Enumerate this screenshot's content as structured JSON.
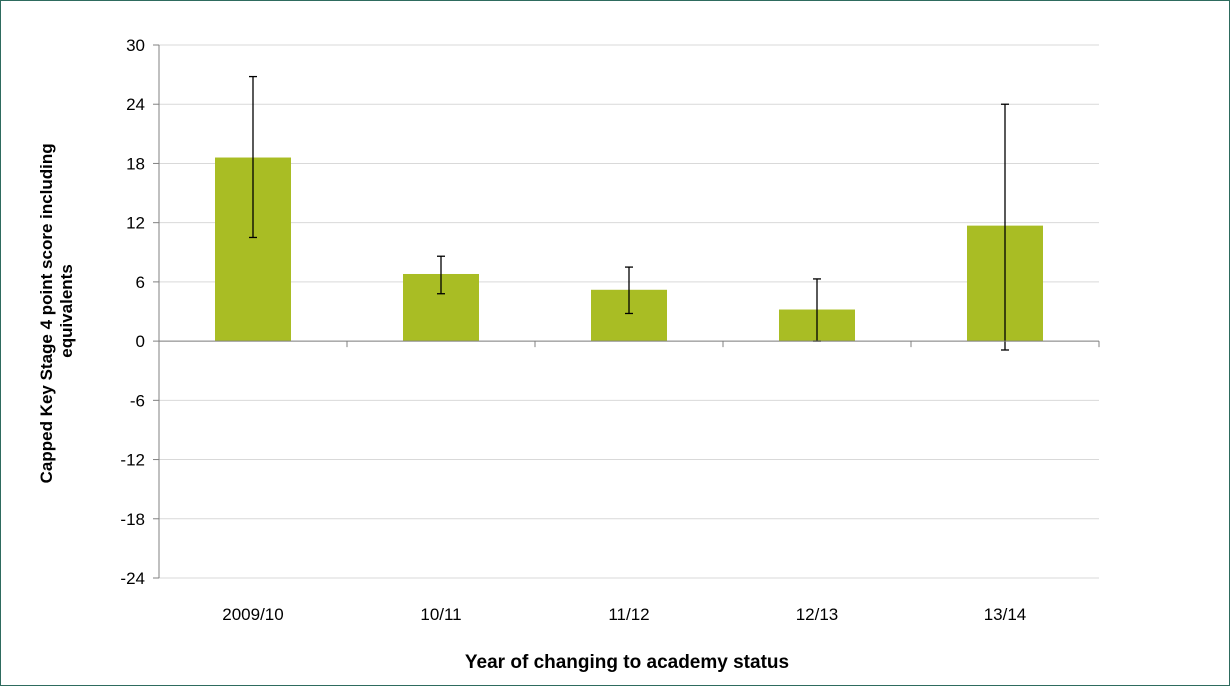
{
  "chart_data": {
    "type": "bar",
    "title": "",
    "xlabel": "Year of changing to academy status",
    "ylabel": "Capped Key Stage 4 point score including equivalents",
    "categories": [
      "2009/10",
      "10/11",
      "11/12",
      "12/13",
      "13/14"
    ],
    "values": [
      18.6,
      6.8,
      5.2,
      3.2,
      11.7
    ],
    "error_low": [
      10.5,
      4.8,
      2.8,
      0.0,
      -0.9
    ],
    "error_high": [
      26.8,
      8.6,
      7.5,
      6.3,
      24.0
    ],
    "ylim": [
      -24,
      30
    ],
    "yticks": [
      30,
      24,
      18,
      12,
      6,
      0,
      -6,
      -12,
      -18,
      -24
    ],
    "grid": true,
    "legend": "none",
    "colors": {
      "bar": "#a9bd24",
      "grid": "#d9d9d9",
      "axis": "#808080",
      "border": "#2e6b5e"
    }
  }
}
